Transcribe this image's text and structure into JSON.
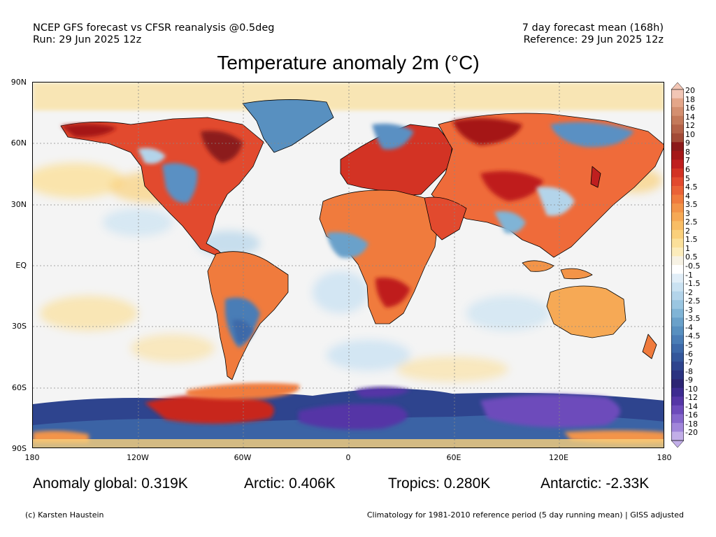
{
  "header": {
    "left_line1": "NCEP GFS forecast vs CFSR reanalysis @0.5deg",
    "left_line2": "Run: 29 Jun 2025 12z",
    "right_line1": "7 day forecast mean (168h)",
    "right_line2": "Reference: 29 Jun 2025 12z"
  },
  "title": "Temperature anomaly 2m (°C)",
  "axes": {
    "lat_labels": [
      "90N",
      "60N",
      "30N",
      "EQ",
      "30S",
      "60S",
      "90S"
    ],
    "lon_labels": [
      "180",
      "120W",
      "60W",
      "0",
      "60E",
      "120E",
      "180"
    ]
  },
  "stats": {
    "global": "Anomaly global: 0.319K",
    "arctic": "Arctic: 0.406K",
    "tropics": "Tropics: 0.280K",
    "antarctic": "Antarctic: -2.33K"
  },
  "footer": {
    "credit": "(c) Karsten Haustein",
    "climatology": "Climatology for 1981-2010 reference period (5 day running mean) | GISS adjusted"
  },
  "colorbar": {
    "labels": [
      "20",
      "18",
      "16",
      "14",
      "12",
      "10",
      "9",
      "8",
      "7",
      "6",
      "5",
      "4.5",
      "4",
      "3.5",
      "3",
      "2.5",
      "2",
      "1.5",
      "1",
      "0.5",
      "-0.5",
      "-1",
      "-1.5",
      "-2",
      "-2.5",
      "-3",
      "-3.5",
      "-4",
      "-4.5",
      "-5",
      "-6",
      "-7",
      "-8",
      "-9",
      "-10",
      "-12",
      "-14",
      "-16",
      "-18",
      "-20"
    ],
    "colors": [
      "#f2c6b5",
      "#e4a689",
      "#d48f70",
      "#c4795a",
      "#b46248",
      "#a34b37",
      "#8c1a1a",
      "#a51818",
      "#bf1f1f",
      "#d33324",
      "#e24a2e",
      "#ea6236",
      "#f07b3d",
      "#f39448",
      "#f6a955",
      "#f8bd65",
      "#fad07b",
      "#fbe09a",
      "#fcecbb",
      "#f7f2e4",
      "#ffffff",
      "#e1eef8",
      "#cae2f2",
      "#b3d4ea",
      "#9ac6e1",
      "#80b4d6",
      "#6aa1ca",
      "#5890c0",
      "#4a7db6",
      "#3d69a9",
      "#34579b",
      "#2e448e",
      "#2b3381",
      "#2c2574",
      "#3d2b90",
      "#5536a6",
      "#6d4bbb",
      "#8667cc",
      "#a186da",
      "#c2aee8"
    ]
  },
  "colors": {
    "ocean": "#f4f4f4",
    "land_warm": "#ef6b3a",
    "land_cool": "#5a90c3",
    "grid": "#888888"
  }
}
